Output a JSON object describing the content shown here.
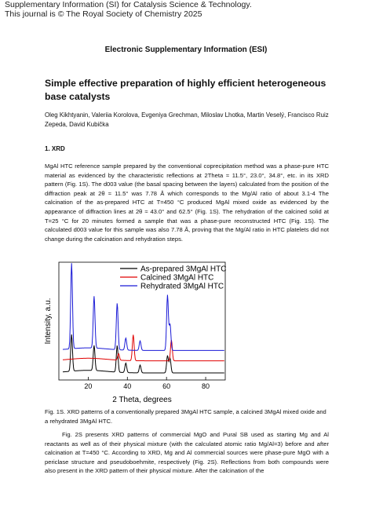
{
  "header": {
    "line1": "Supplementary Information (SI) for Catalysis Science & Technology.",
    "line2": "This journal is © The Royal Society of Chemistry 2025"
  },
  "esi_heading": "Electronic Supplementary Information (ESI)",
  "title": "Simple effective preparation of highly efficient heterogeneous base catalysts",
  "authors": "Oleg Kikhtyanin, Valeriia Korolova, Evgeniya Grechman, Miloslav Lhotka, Martin Veselý, Francisco Ruiz Zepeda, David Kubička",
  "section1": "1. XRD",
  "paragraph1": "MgAl HTC reference sample prepared by the conventional coprecipitation method was a phase-pure HTC material as evidenced by the characteristic reflections at 2Theta ≈ 11.5°, 23.0°, 34.8°, etc. in its XRD pattern (Fig. 1S). The d003 value (the basal spacing between the layers) calculated from the position of the diffraction peak at 2θ ≈ 11.5° was 7.78 Å which corresponds to the Mg/Al ratio of about 3.1-4 The calcination of the as-prepared HTC at T=450 °C produced MgAl mixed oxide as evidenced by the appearance of diffraction lines at 2θ ≈ 43.0° and 62.5° (Fig. 1S). The rehydration of the calcined solid at T=25 °C for 20 minutes formed a sample that was a phase-pure reconstructed HTC (Fig. 1S). The calculated d003 value for this sample was also 7.78 Å, proving that the Mg/Al ratio in HTC platelets did not change during the calcination and rehydration steps.",
  "caption": "Fig. 1S. XRD patterns of a conventionally prepared 3MgAl HTC sample, a calcined 3MgAl mixed oxide and a rehydrated 3MgAl HTC.",
  "paragraph2": "Fig. 2S presents XRD patterns of commercial MgO and Pural SB used as starting Mg and Al reactants as well as of their physical mixture (with the calculated atomic ratio Mg/Al=3) before and after calcination at T=450 °C. According to XRD, Mg and Al commercial sources were phase-pure MgO with a periclase structure and pseudoboehmite, respectively (Fig. 2S). Reflections from both compounds were also present in the XRD pattern of their physical mixture. After the calcination of the",
  "chart_data": {
    "type": "line",
    "xlabel": "2 Theta, degrees",
    "ylabel": "Intensity, a.u.",
    "xlim": [
      5,
      90
    ],
    "x_ticks": [
      20,
      40,
      60,
      80
    ],
    "x_tick_labels": [
      "20",
      "40",
      "60",
      "80"
    ],
    "y_ticks_shown": false,
    "legend_position": "top-right",
    "series": [
      {
        "name": "As-prepared 3MgAl HTC",
        "color": "#000000",
        "baseline": 0,
        "peaks": [
          [
            11.5,
            85
          ],
          [
            23.0,
            58
          ],
          [
            34.8,
            62
          ],
          [
            39.2,
            22
          ],
          [
            46.5,
            18
          ],
          [
            60.5,
            40
          ],
          [
            61.8,
            34
          ]
        ]
      },
      {
        "name": "Calcined 3MgAl HTC",
        "color": "#e00000",
        "baseline": 28,
        "peaks": [
          [
            35.5,
            15
          ],
          [
            43.0,
            60
          ],
          [
            62.5,
            48
          ]
        ]
      },
      {
        "name": "Rehydrated 3MgAl HTC",
        "color": "#1a1ad6",
        "baseline": 52,
        "peaks": [
          [
            11.5,
            198
          ],
          [
            23.0,
            120
          ],
          [
            34.8,
            108
          ],
          [
            39.2,
            28
          ],
          [
            46.5,
            22
          ],
          [
            60.5,
            128
          ],
          [
            61.8,
            60
          ]
        ]
      }
    ]
  }
}
